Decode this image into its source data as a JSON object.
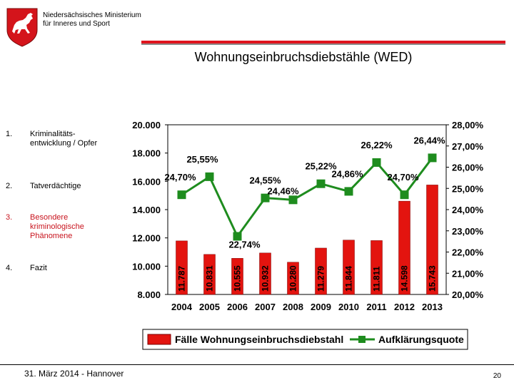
{
  "header": {
    "ministry_line1": "Niedersächsisches Ministerium",
    "ministry_line2": "für Inneres und Sport",
    "title": "Wohnungseinbruchsdiebstähle (WED)"
  },
  "agenda": [
    {
      "num": "1.",
      "label": "Kriminalitäts-entwicklung / Opfer",
      "active": false
    },
    {
      "num": "2.",
      "label": "Tatverdächtige",
      "active": false
    },
    {
      "num": "3.",
      "label": "Besondere kriminologische Phänomene",
      "active": true
    },
    {
      "num": "4.",
      "label": "Fazit",
      "active": false
    }
  ],
  "chart_data": {
    "type": "bar+line",
    "categories": [
      "2004",
      "2005",
      "2006",
      "2007",
      "2008",
      "2009",
      "2010",
      "2011",
      "2012",
      "2013"
    ],
    "series": [
      {
        "name": "Fälle Wohnungseinbruchsdiebstahl",
        "kind": "bar",
        "axis": "left",
        "values": [
          11787,
          10831,
          10555,
          10932,
          10280,
          11279,
          11844,
          11811,
          14598,
          15743
        ],
        "labels": [
          "11.787",
          "10.831",
          "10.555",
          "10.932",
          "10.280",
          "11.279",
          "11.844",
          "11.811",
          "14.598",
          "15.743"
        ],
        "color": "#e3140f"
      },
      {
        "name": "Aufklärungsquote",
        "kind": "line",
        "axis": "right",
        "values": [
          24.7,
          25.55,
          22.74,
          24.55,
          24.46,
          25.22,
          24.86,
          26.22,
          24.7,
          26.44
        ],
        "labels": [
          "24,70%",
          "25,55%",
          "22,74%",
          "24,55%",
          "24,46%",
          "25,22%",
          "24,86%",
          "26,22%",
          "24,70%",
          "26,44%"
        ],
        "color": "#1e8c1e"
      }
    ],
    "left_axis": {
      "min": 8000,
      "max": 20000,
      "ticks": [
        "8.000",
        "10.000",
        "12.000",
        "14.000",
        "16.000",
        "18.000",
        "20.000"
      ]
    },
    "right_axis": {
      "min": 20,
      "max": 28,
      "ticks": [
        "20,00%",
        "21,00%",
        "22,00%",
        "23,00%",
        "24,00%",
        "25,00%",
        "26,00%",
        "27,00%",
        "28,00%"
      ]
    },
    "legend": [
      "Fälle Wohnungseinbruchsdiebstahl",
      "Aufklärungsquote"
    ],
    "legend_position": "bottom"
  },
  "footer": {
    "date": "31. März 2014 - Hannover",
    "page": "20"
  }
}
